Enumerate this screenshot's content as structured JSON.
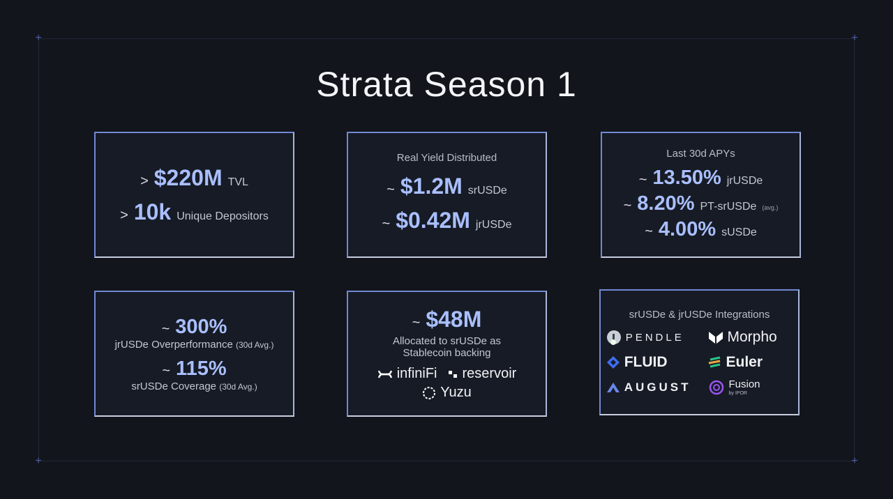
{
  "title": "Strata Season 1",
  "cards": [
    {
      "lines": [
        {
          "prefix": ">",
          "value": "$220M",
          "unit": "TVL"
        },
        {
          "prefix": ">",
          "value": "10k",
          "unit": "Unique Depositors"
        }
      ]
    },
    {
      "heading": "Real Yield Distributed",
      "lines": [
        {
          "prefix": "~",
          "value": "$1.2M",
          "unit": "srUSDe"
        },
        {
          "prefix": "~",
          "value": "$0.42M",
          "unit": "jrUSDe"
        }
      ]
    },
    {
      "heading": "Last 30d APYs",
      "lines": [
        {
          "prefix": "~",
          "value": "13.50%",
          "unit": "jrUSDe"
        },
        {
          "prefix": "~",
          "value": "8.20%",
          "unit": "PT-srUSDe",
          "note": "(avg.)"
        },
        {
          "prefix": "~",
          "value": "4.00%",
          "unit": "sUSDe"
        }
      ]
    },
    {
      "lines": [
        {
          "prefix": "~",
          "value": "300%",
          "caption": "jrUSDe Overperformance",
          "note": "(30d Avg.)"
        },
        {
          "prefix": "~",
          "value": "115%",
          "caption": "srUSDe Coverage",
          "note": "(30d Avg.)"
        }
      ]
    },
    {
      "lines": [
        {
          "prefix": "~",
          "value": "$48M",
          "caption": "Allocated to srUSDe as Stablecoin backing"
        }
      ],
      "logos": [
        "infiniFi",
        "reservoir",
        "Yuzu"
      ]
    },
    {
      "heading": "srUSDe & jrUSDe Integrations",
      "logos": [
        "PENDLE",
        "Morpho",
        "FLUID",
        "Euler",
        "AUGUST",
        "Fusion"
      ],
      "logo_note": "by IPOR"
    }
  ]
}
